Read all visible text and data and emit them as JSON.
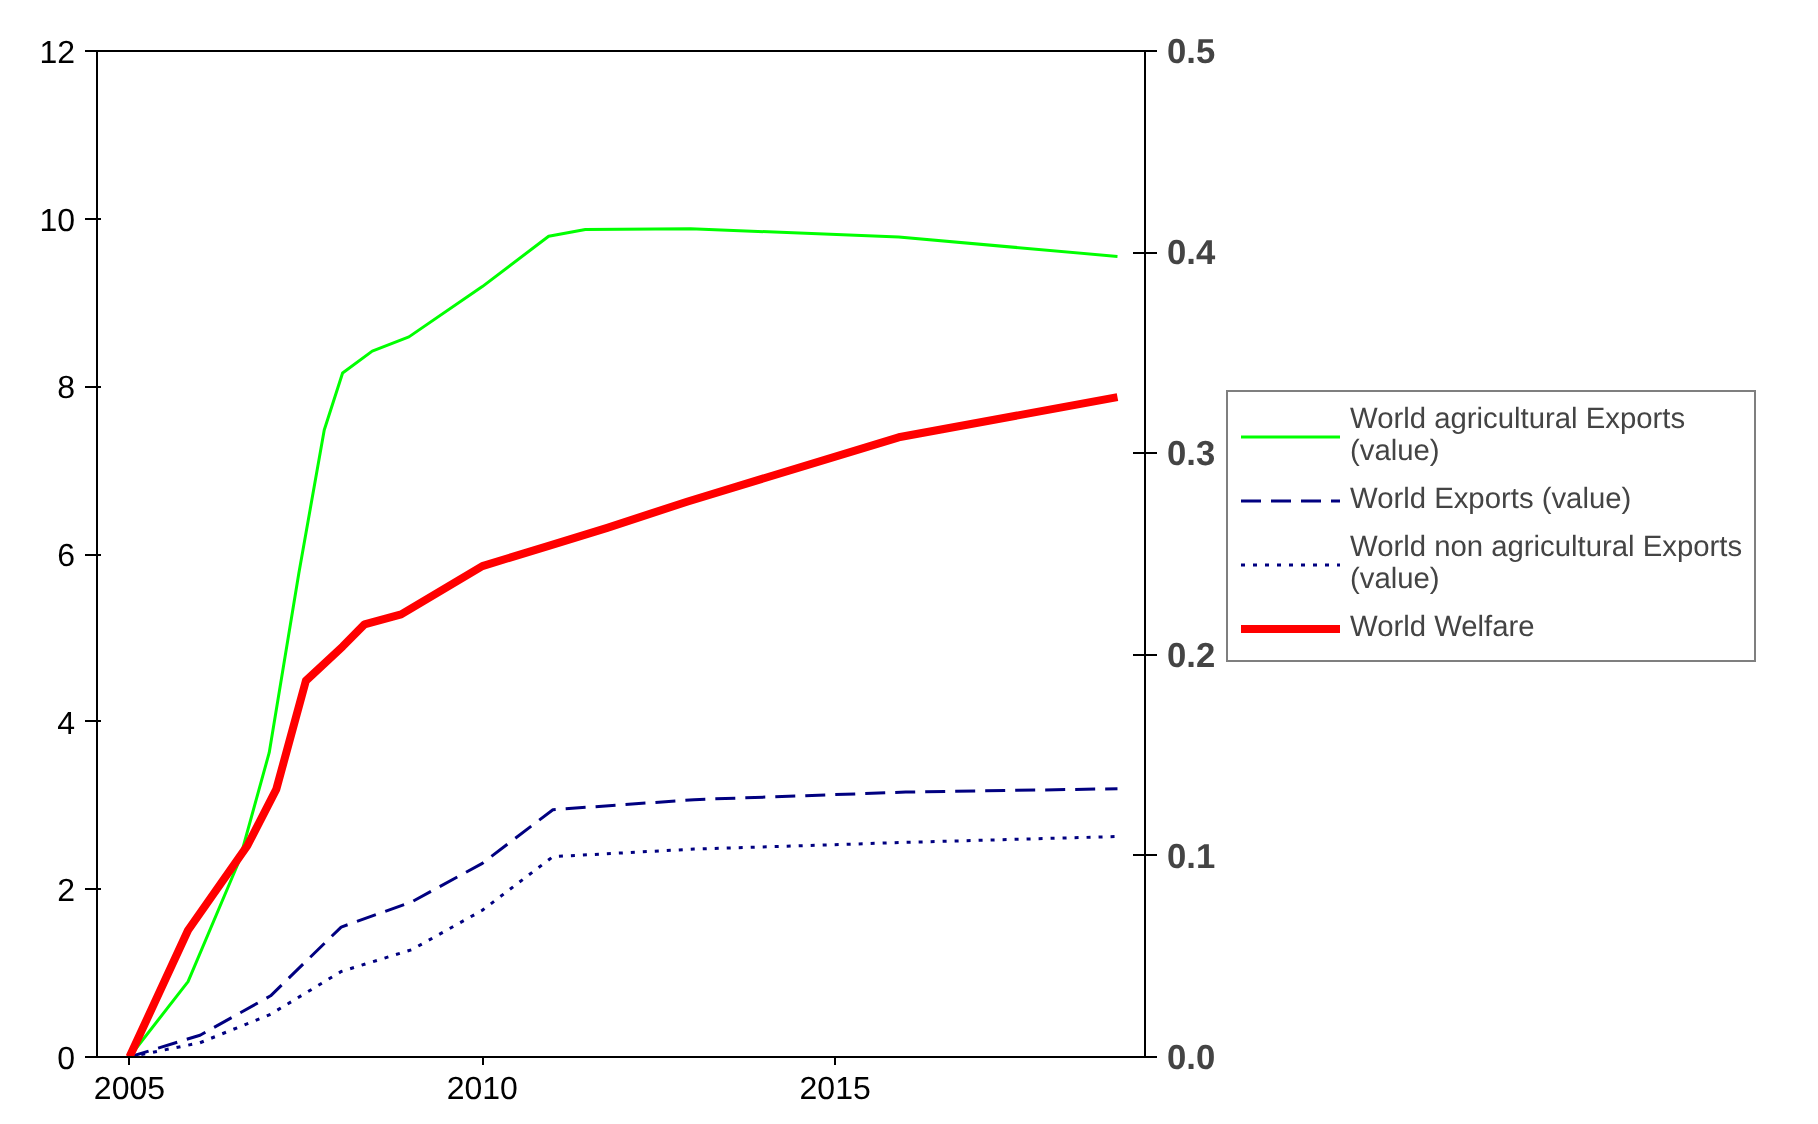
{
  "chart_data": {
    "type": "line",
    "xlim": [
      2004.54,
      2019.39
    ],
    "xticks": [
      2005,
      2010,
      2015
    ],
    "ylim": [
      0,
      12
    ],
    "yticks": [
      0,
      2,
      4,
      6,
      8,
      10,
      12
    ],
    "y2lim": [
      0,
      0.5
    ],
    "y2ticks": [
      {
        "value": 0,
        "label": "0.0"
      },
      {
        "value": 0.1,
        "label": "0.1"
      },
      {
        "value": 0.2,
        "label": "0.2"
      },
      {
        "value": 0.3,
        "label": "0.3"
      },
      {
        "value": 0.4,
        "label": "0.4"
      },
      {
        "value": 0.5,
        "label": "0.5"
      }
    ],
    "grid": false,
    "legend": "right",
    "marker": "none",
    "series": [
      {
        "name": "World agricultural Exports (value)",
        "color": "#00ff00",
        "line_style": "solid",
        "x": [
          2005,
          2005.83,
          2006.56,
          2006.98,
          2007.4,
          2007.76,
          2008.02,
          2008.44,
          2008.96,
          2010,
          2010.94,
          2011.46,
          2012.95,
          2015.9,
          2019
        ],
        "values": [
          0,
          0.9,
          2.35,
          3.63,
          5.77,
          7.48,
          8.16,
          8.42,
          8.59,
          9.19,
          9.79,
          9.87,
          9.88,
          9.78,
          9.55
        ]
      },
      {
        "name": "World Exports (value)",
        "color": "#000080",
        "line_style": "dashed",
        "x": [
          2005,
          2006,
          2007,
          2008,
          2009,
          2010,
          2011,
          2013,
          2016,
          2019
        ],
        "values": [
          0,
          0.26,
          0.73,
          1.55,
          1.85,
          2.31,
          2.95,
          3.07,
          3.16,
          3.2
        ]
      },
      {
        "name": "World non agricultural Exports (value)",
        "color": "#000080",
        "line_style": "dotted",
        "x": [
          2005,
          2006,
          2007,
          2008,
          2009,
          2010,
          2011,
          2013,
          2016,
          2019
        ],
        "values": [
          0,
          0.17,
          0.51,
          1.02,
          1.28,
          1.75,
          2.39,
          2.48,
          2.56,
          2.63
        ]
      },
      {
        "name": "World Welfare",
        "color": "#ff0000",
        "line_style": "solid",
        "axis": "y2",
        "x": [
          2005,
          2005.83,
          2006.67,
          2007.08,
          2007.5,
          2008.02,
          2008.33,
          2008.85,
          2010,
          2010.94,
          2011.77,
          2012.9,
          2015.9,
          2019
        ],
        "values": [
          0,
          0.063,
          0.105,
          0.133,
          0.187,
          0.204,
          0.215,
          0.22,
          0.244,
          0.254,
          0.263,
          0.276,
          0.308,
          0.328
        ]
      }
    ]
  }
}
